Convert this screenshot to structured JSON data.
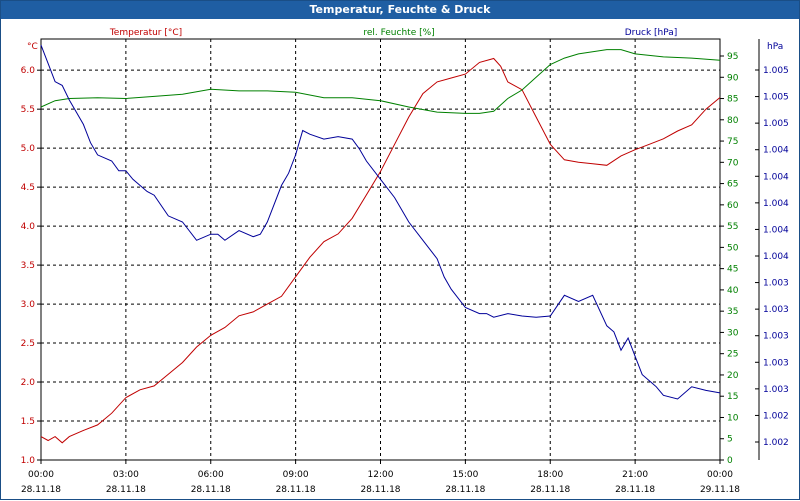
{
  "window": {
    "title": "Temperatur, Feuchte & Druck"
  },
  "chart_data": {
    "type": "line",
    "title": "Temperatur, Feuchte & Druck",
    "grid": true,
    "x_axis": {
      "range": [
        "28.11.18 00:00",
        "29.11.18 00:00"
      ],
      "ticks": [
        {
          "time": "00:00",
          "date": "28.11.18"
        },
        {
          "time": "03:00",
          "date": "28.11.18"
        },
        {
          "time": "06:00",
          "date": "28.11.18"
        },
        {
          "time": "09:00",
          "date": "28.11.18"
        },
        {
          "time": "12:00",
          "date": "28.11.18"
        },
        {
          "time": "15:00",
          "date": "28.11.18"
        },
        {
          "time": "18:00",
          "date": "28.11.18"
        },
        {
          "time": "21:00",
          "date": "28.11.18"
        },
        {
          "time": "00:00",
          "date": "29.11.18"
        }
      ]
    },
    "y_axes": {
      "temperature": {
        "label": "Temperatur [°C]",
        "unit": "°C",
        "color": "#c00000",
        "range": [
          1.0,
          6.4
        ],
        "ticks": [
          "1.0",
          "1.5",
          "2.0",
          "2.5",
          "3.0",
          "3.5",
          "4.0",
          "4.5",
          "5.0",
          "5.5",
          "6.0"
        ]
      },
      "humidity": {
        "label": "rel. Feuchte [%]",
        "unit": "%",
        "color": "#008000",
        "range": [
          0,
          99
        ],
        "ticks": [
          "0",
          "5",
          "10",
          "15",
          "20",
          "25",
          "30",
          "35",
          "40",
          "45",
          "50",
          "55",
          "60",
          "65",
          "70",
          "75",
          "80",
          "85",
          "90",
          "95"
        ]
      },
      "pressure": {
        "label": "Druck [hPa]",
        "unit": "hPa",
        "color": "#000099",
        "range": [
          1001.75,
          1005.2
        ],
        "ticks": [
          "1.002",
          "1.002",
          "1.003",
          "1.003",
          "1.003",
          "1.003",
          "1.003",
          "1.004",
          "1.004",
          "1.004",
          "1.004",
          "1.004",
          "1.005",
          "1.005",
          "1.005"
        ]
      }
    },
    "series": [
      {
        "name": "Temperatur [°C]",
        "axis": "temperature",
        "color": "#c00000",
        "points": [
          [
            0,
            1.3
          ],
          [
            0.25,
            1.25
          ],
          [
            0.5,
            1.3
          ],
          [
            0.75,
            1.22
          ],
          [
            1,
            1.3
          ],
          [
            1.5,
            1.38
          ],
          [
            2,
            1.45
          ],
          [
            2.5,
            1.6
          ],
          [
            3,
            1.8
          ],
          [
            3.5,
            1.9
          ],
          [
            4,
            1.95
          ],
          [
            4.5,
            2.1
          ],
          [
            5,
            2.25
          ],
          [
            5.5,
            2.45
          ],
          [
            6,
            2.6
          ],
          [
            6.5,
            2.7
          ],
          [
            7,
            2.85
          ],
          [
            7.5,
            2.9
          ],
          [
            8,
            3.0
          ],
          [
            8.5,
            3.1
          ],
          [
            9,
            3.35
          ],
          [
            9.5,
            3.6
          ],
          [
            10,
            3.8
          ],
          [
            10.5,
            3.9
          ],
          [
            11,
            4.1
          ],
          [
            11.5,
            4.4
          ],
          [
            12,
            4.7
          ],
          [
            12.5,
            5.05
          ],
          [
            13,
            5.4
          ],
          [
            13.5,
            5.7
          ],
          [
            14,
            5.85
          ],
          [
            14.5,
            5.9
          ],
          [
            15,
            5.95
          ],
          [
            15.5,
            6.1
          ],
          [
            16,
            6.15
          ],
          [
            16.25,
            6.05
          ],
          [
            16.5,
            5.85
          ],
          [
            17,
            5.75
          ],
          [
            17.5,
            5.4
          ],
          [
            18,
            5.05
          ],
          [
            18.5,
            4.85
          ],
          [
            19,
            4.82
          ],
          [
            19.5,
            4.8
          ],
          [
            20,
            4.78
          ],
          [
            20.5,
            4.9
          ],
          [
            21,
            4.98
          ],
          [
            21.5,
            5.05
          ],
          [
            22,
            5.12
          ],
          [
            22.5,
            5.22
          ],
          [
            23,
            5.3
          ],
          [
            23.5,
            5.5
          ],
          [
            24,
            5.65
          ]
        ]
      },
      {
        "name": "rel. Feuchte [%]",
        "axis": "humidity",
        "color": "#008000",
        "points": [
          [
            0,
            83
          ],
          [
            0.5,
            84.5
          ],
          [
            1,
            85
          ],
          [
            2,
            85.2
          ],
          [
            3,
            85
          ],
          [
            4,
            85.5
          ],
          [
            5,
            86
          ],
          [
            6,
            87.2
          ],
          [
            7,
            86.8
          ],
          [
            8,
            86.8
          ],
          [
            9,
            86.5
          ],
          [
            10,
            85.2
          ],
          [
            11,
            85.2
          ],
          [
            12,
            84.5
          ],
          [
            13,
            83
          ],
          [
            14,
            81.8
          ],
          [
            15,
            81.5
          ],
          [
            15.5,
            81.5
          ],
          [
            16,
            82
          ],
          [
            16.5,
            85
          ],
          [
            17,
            87
          ],
          [
            17.5,
            90
          ],
          [
            18,
            93
          ],
          [
            18.5,
            94.5
          ],
          [
            19,
            95.5
          ],
          [
            20,
            96.5
          ],
          [
            20.5,
            96.5
          ],
          [
            21,
            95.5
          ],
          [
            22,
            94.8
          ],
          [
            23,
            94.5
          ],
          [
            24,
            94
          ]
        ]
      },
      {
        "name": "Druck [hPa]",
        "axis": "pressure",
        "color": "#000099",
        "points": [
          [
            0,
            1005.15
          ],
          [
            0.25,
            1005.0
          ],
          [
            0.5,
            1004.85
          ],
          [
            0.75,
            1004.82
          ],
          [
            1,
            1004.7
          ],
          [
            1.25,
            1004.6
          ],
          [
            1.5,
            1004.5
          ],
          [
            1.75,
            1004.35
          ],
          [
            2,
            1004.25
          ],
          [
            2.5,
            1004.2
          ],
          [
            2.75,
            1004.12
          ],
          [
            3,
            1004.12
          ],
          [
            3.25,
            1004.05
          ],
          [
            3.5,
            1004.0
          ],
          [
            3.75,
            1003.95
          ],
          [
            4,
            1003.92
          ],
          [
            4.5,
            1003.75
          ],
          [
            5,
            1003.7
          ],
          [
            5.5,
            1003.55
          ],
          [
            6,
            1003.6
          ],
          [
            6.25,
            1003.6
          ],
          [
            6.5,
            1003.55
          ],
          [
            7,
            1003.63
          ],
          [
            7.5,
            1003.58
          ],
          [
            7.75,
            1003.6
          ],
          [
            8,
            1003.7
          ],
          [
            8.5,
            1004.0
          ],
          [
            8.75,
            1004.1
          ],
          [
            9,
            1004.25
          ],
          [
            9.25,
            1004.45
          ],
          [
            9.5,
            1004.42
          ],
          [
            10,
            1004.38
          ],
          [
            10.5,
            1004.4
          ],
          [
            11,
            1004.38
          ],
          [
            11.25,
            1004.3
          ],
          [
            11.5,
            1004.2
          ],
          [
            12,
            1004.05
          ],
          [
            12.5,
            1003.9
          ],
          [
            13,
            1003.7
          ],
          [
            13.5,
            1003.55
          ],
          [
            14,
            1003.4
          ],
          [
            14.25,
            1003.25
          ],
          [
            14.5,
            1003.15
          ],
          [
            15,
            1003.0
          ],
          [
            15.5,
            1002.95
          ],
          [
            15.75,
            1002.95
          ],
          [
            16,
            1002.92
          ],
          [
            16.5,
            1002.95
          ],
          [
            17,
            1002.93
          ],
          [
            17.5,
            1002.92
          ],
          [
            18,
            1002.93
          ],
          [
            18.5,
            1003.1
          ],
          [
            19,
            1003.05
          ],
          [
            19.5,
            1003.1
          ],
          [
            20,
            1002.85
          ],
          [
            20.25,
            1002.8
          ],
          [
            20.5,
            1002.65
          ],
          [
            20.75,
            1002.75
          ],
          [
            21,
            1002.6
          ],
          [
            21.25,
            1002.45
          ],
          [
            21.5,
            1002.4
          ],
          [
            21.75,
            1002.35
          ],
          [
            22,
            1002.28
          ],
          [
            22.5,
            1002.25
          ],
          [
            23,
            1002.35
          ],
          [
            23.5,
            1002.32
          ],
          [
            24,
            1002.3
          ]
        ]
      }
    ]
  }
}
